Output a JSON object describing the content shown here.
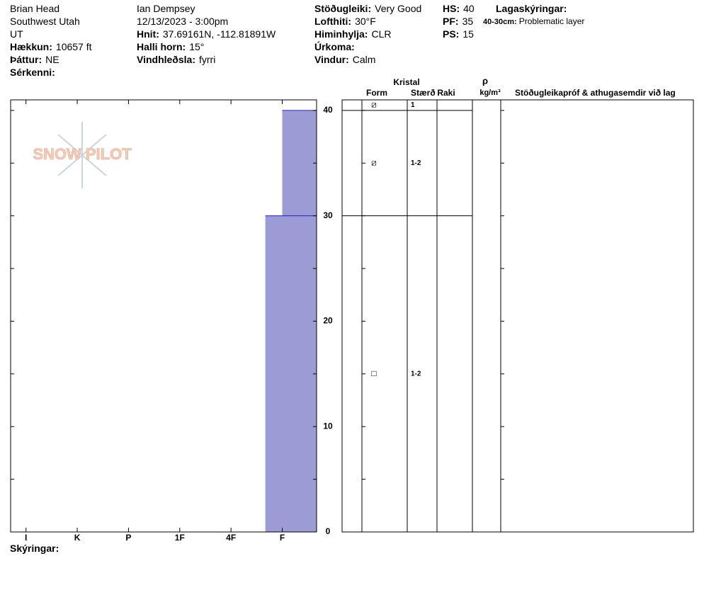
{
  "header": {
    "columns": [
      [
        {
          "value": "Brian Head"
        },
        {
          "value": "Southwest Utah"
        },
        {
          "value": "UT"
        },
        {
          "label": "Hækkun:",
          "value": "10657 ft"
        },
        {
          "label": "Þáttur:",
          "value": "NE"
        },
        {
          "label": "Sérkenni:"
        }
      ],
      [
        {
          "value": "Ian Dempsey"
        },
        {
          "value": "12/13/2023 - 3:00pm"
        },
        {
          "label": "Hnit:",
          "value": "37.69161N, -112.81891W"
        },
        {
          "label": "Halli horn:",
          "value": "15°"
        },
        {
          "label": "Vindhleðsla:",
          "value": "fyrri"
        }
      ],
      [
        {
          "label": "Stöðugleiki:",
          "value": "Very Good"
        },
        {
          "label": "Lofthiti:",
          "value": "30°F"
        },
        {
          "label": "Himinhylja:",
          "value": "CLR"
        },
        {
          "label": "Úrkoma:"
        },
        {
          "label": "Vindur:",
          "value": "Calm"
        }
      ],
      [
        {
          "label": "HS:",
          "value": "40"
        },
        {
          "label": "PF:",
          "value": "35"
        },
        {
          "label": "PS:",
          "value": "15"
        }
      ]
    ],
    "notes_title": "Lagaskýringar:",
    "layer_notes": [
      {
        "range": "40-30cm:",
        "note": "Problematic layer"
      }
    ]
  },
  "logo": "SNOW PILOT",
  "table_headers": {
    "crystal": "Kristal",
    "form": "Form",
    "size": "Stærð",
    "moisture": "Raki",
    "rho": "ρ",
    "density_unit": "kg/m³",
    "comments": "Stöðugleikapróf & athugasemdir við lag"
  },
  "chart_data": {
    "type": "hardness-profile",
    "ylim": [
      0,
      41
    ],
    "yticks": [
      0,
      10,
      20,
      30,
      40
    ],
    "yminor_ticks": [
      5,
      15,
      25,
      35
    ],
    "xlim": [
      6.3,
      0.33
    ],
    "xticks": [
      {
        "value": 6,
        "label": "I"
      },
      {
        "value": 5,
        "label": "K"
      },
      {
        "value": 4,
        "label": "P"
      },
      {
        "value": 3,
        "label": "1F"
      },
      {
        "value": 2,
        "label": "4F"
      },
      {
        "value": 1,
        "label": "F"
      }
    ],
    "color": "#9b9bd6",
    "layers": [
      {
        "top": 40,
        "bottom": 30,
        "hardness": 1
      },
      {
        "top": 30,
        "bottom": 0,
        "hardness": 1.33
      }
    ],
    "crystal_rows": [
      {
        "top": 41,
        "bottom": 40,
        "form": "⧄",
        "size": "1"
      },
      {
        "top": 40,
        "bottom": 30,
        "form": "⧄",
        "size": "1-2"
      },
      {
        "top": 30,
        "bottom": 0,
        "form": "□",
        "size": "1-2"
      }
    ]
  },
  "footer": "Skýringar:"
}
